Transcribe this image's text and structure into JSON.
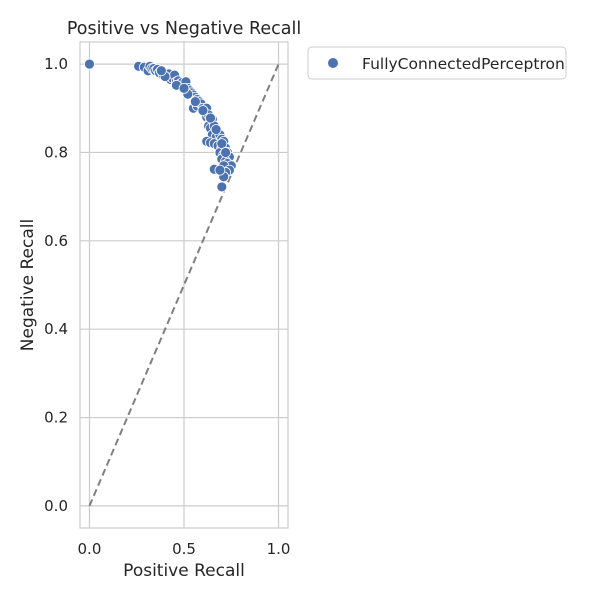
{
  "chart_data": {
    "type": "scatter",
    "title": "Positive vs Negative Recall",
    "xlabel": "Positive Recall",
    "ylabel": "Negative Recall",
    "xlim": [
      -0.05,
      1.05
    ],
    "ylim": [
      -0.05,
      1.05
    ],
    "xticks": [
      0.0,
      0.5,
      1.0
    ],
    "xtick_labels": [
      "0.0",
      "0.5",
      "1.0"
    ],
    "yticks": [
      0.0,
      0.2,
      0.4,
      0.6,
      0.8,
      1.0
    ],
    "ytick_labels": [
      "0.0",
      "0.2",
      "0.4",
      "0.6",
      "0.8",
      "1.0"
    ],
    "grid": true,
    "legend_position": "outside upper right",
    "reference_line": {
      "style": "dashed",
      "color": "#7f7f7f",
      "from": [
        0,
        0
      ],
      "to": [
        1,
        1
      ]
    },
    "series": [
      {
        "name": "FullyConnectedPerceptron",
        "color": "#4c72b0",
        "points": [
          [
            0.0,
            1.0
          ],
          [
            0.26,
            0.995
          ],
          [
            0.29,
            0.993
          ],
          [
            0.31,
            0.985
          ],
          [
            0.32,
            0.995
          ],
          [
            0.33,
            0.99
          ],
          [
            0.34,
            0.99
          ],
          [
            0.35,
            0.985
          ],
          [
            0.36,
            0.988
          ],
          [
            0.37,
            0.98
          ],
          [
            0.38,
            0.985
          ],
          [
            0.39,
            0.975
          ],
          [
            0.4,
            0.978
          ],
          [
            0.41,
            0.97
          ],
          [
            0.42,
            0.978
          ],
          [
            0.43,
            0.965
          ],
          [
            0.44,
            0.968
          ],
          [
            0.45,
            0.975
          ],
          [
            0.46,
            0.96
          ],
          [
            0.47,
            0.962
          ],
          [
            0.48,
            0.955
          ],
          [
            0.49,
            0.958
          ],
          [
            0.5,
            0.95
          ],
          [
            0.51,
            0.96
          ],
          [
            0.52,
            0.945
          ],
          [
            0.53,
            0.94
          ],
          [
            0.54,
            0.935
          ],
          [
            0.55,
            0.93
          ],
          [
            0.56,
            0.925
          ],
          [
            0.57,
            0.92
          ],
          [
            0.58,
            0.915
          ],
          [
            0.55,
            0.9
          ],
          [
            0.57,
            0.905
          ],
          [
            0.59,
            0.91
          ],
          [
            0.6,
            0.9
          ],
          [
            0.61,
            0.895
          ],
          [
            0.62,
            0.9
          ],
          [
            0.62,
            0.88
          ],
          [
            0.63,
            0.885
          ],
          [
            0.64,
            0.87
          ],
          [
            0.65,
            0.875
          ],
          [
            0.63,
            0.86
          ],
          [
            0.64,
            0.855
          ],
          [
            0.66,
            0.86
          ],
          [
            0.67,
            0.85
          ],
          [
            0.68,
            0.845
          ],
          [
            0.65,
            0.84
          ],
          [
            0.67,
            0.835
          ],
          [
            0.69,
            0.84
          ],
          [
            0.7,
            0.83
          ],
          [
            0.71,
            0.825
          ],
          [
            0.62,
            0.825
          ],
          [
            0.64,
            0.822
          ],
          [
            0.66,
            0.82
          ],
          [
            0.68,
            0.815
          ],
          [
            0.7,
            0.81
          ],
          [
            0.72,
            0.81
          ],
          [
            0.73,
            0.8
          ],
          [
            0.69,
            0.8
          ],
          [
            0.71,
            0.795
          ],
          [
            0.74,
            0.79
          ],
          [
            0.7,
            0.785
          ],
          [
            0.72,
            0.78
          ],
          [
            0.73,
            0.775
          ],
          [
            0.75,
            0.77
          ],
          [
            0.71,
            0.77
          ],
          [
            0.74,
            0.76
          ],
          [
            0.72,
            0.755
          ],
          [
            0.71,
            0.745
          ],
          [
            0.66,
            0.762
          ],
          [
            0.69,
            0.76
          ],
          [
            0.7,
            0.722
          ],
          [
            0.4,
            0.972
          ],
          [
            0.46,
            0.952
          ],
          [
            0.52,
            0.932
          ],
          [
            0.56,
            0.915
          ],
          [
            0.6,
            0.895
          ],
          [
            0.64,
            0.878
          ],
          [
            0.67,
            0.852
          ],
          [
            0.7,
            0.82
          ],
          [
            0.72,
            0.8
          ],
          [
            0.38,
            0.985
          ],
          [
            0.5,
            0.945
          ]
        ]
      }
    ]
  }
}
